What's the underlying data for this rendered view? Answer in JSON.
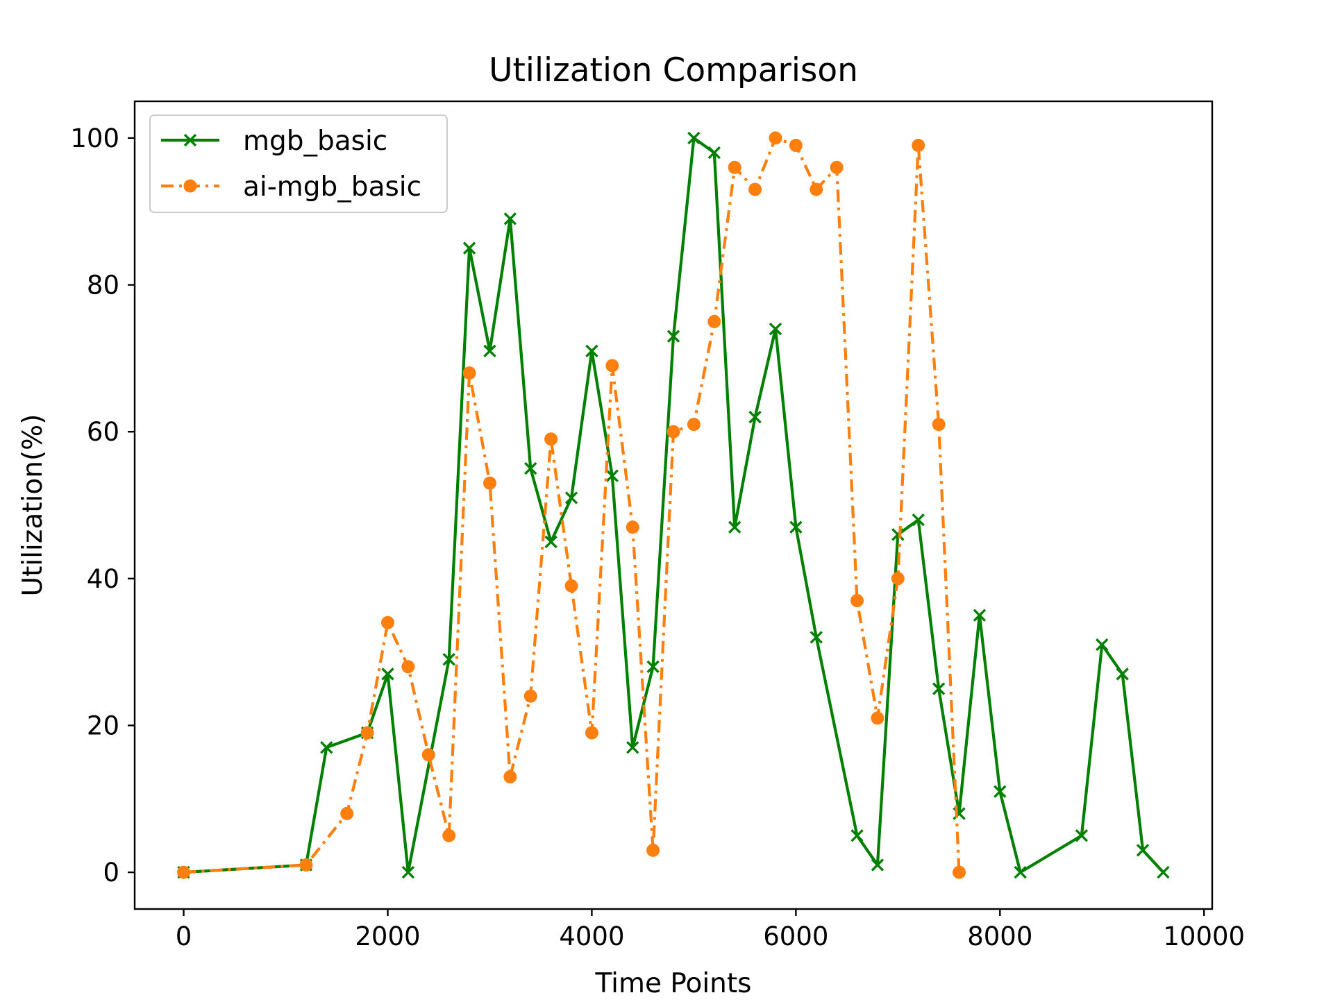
{
  "chart_data": {
    "type": "line",
    "title": "Utilization Comparison",
    "xlabel": "Time Points",
    "ylabel": "Utilization(%)",
    "xlim": [
      -480,
      10080
    ],
    "ylim": [
      -5,
      105
    ],
    "xticks": [
      0,
      2000,
      4000,
      6000,
      8000,
      10000
    ],
    "xtick_labels": [
      "0",
      "2000",
      "4000",
      "6000",
      "8000",
      "10000"
    ],
    "yticks": [
      0,
      20,
      40,
      60,
      80,
      100
    ],
    "ytick_labels": [
      "0",
      "20",
      "40",
      "60",
      "80",
      "100"
    ],
    "grid": false,
    "legend_position": "top-left",
    "series": [
      {
        "name": "mgb_basic",
        "color": "#008000",
        "line_style": "solid",
        "marker": "x",
        "x": [
          0,
          1200,
          1400,
          1800,
          2000,
          2200,
          2600,
          2800,
          3000,
          3200,
          3400,
          3600,
          3800,
          4000,
          4200,
          4400,
          4600,
          4800,
          5000,
          5200,
          5400,
          5600,
          5800,
          6000,
          6200,
          6600,
          6800,
          7000,
          7200,
          7400,
          7600,
          7800,
          8000,
          8200,
          8800,
          9000,
          9200,
          9400,
          9600
        ],
        "y": [
          0,
          1,
          17,
          19,
          27,
          0,
          29,
          85,
          71,
          89,
          55,
          45,
          51,
          71,
          54,
          17,
          28,
          73,
          100,
          98,
          47,
          62,
          74,
          47,
          32,
          5,
          1,
          46,
          48,
          25,
          8,
          35,
          11,
          0,
          5,
          31,
          27,
          3,
          0
        ]
      },
      {
        "name": "ai-mgb_basic",
        "color": "#ff7f0e",
        "line_style": "dashdot",
        "marker": "o",
        "x": [
          0,
          1200,
          1600,
          1800,
          2000,
          2200,
          2400,
          2600,
          2800,
          3000,
          3200,
          3400,
          3600,
          3800,
          4000,
          4200,
          4400,
          4600,
          4800,
          5000,
          5200,
          5400,
          5600,
          5800,
          6000,
          6200,
          6400,
          6600,
          6800,
          7000,
          7200,
          7400,
          7600
        ],
        "y": [
          0,
          1,
          8,
          19,
          34,
          28,
          16,
          5,
          68,
          53,
          13,
          24,
          59,
          39,
          19,
          69,
          47,
          3,
          60,
          61,
          75,
          96,
          93,
          100,
          99,
          93,
          96,
          37,
          21,
          40,
          99,
          61,
          0
        ]
      }
    ]
  }
}
